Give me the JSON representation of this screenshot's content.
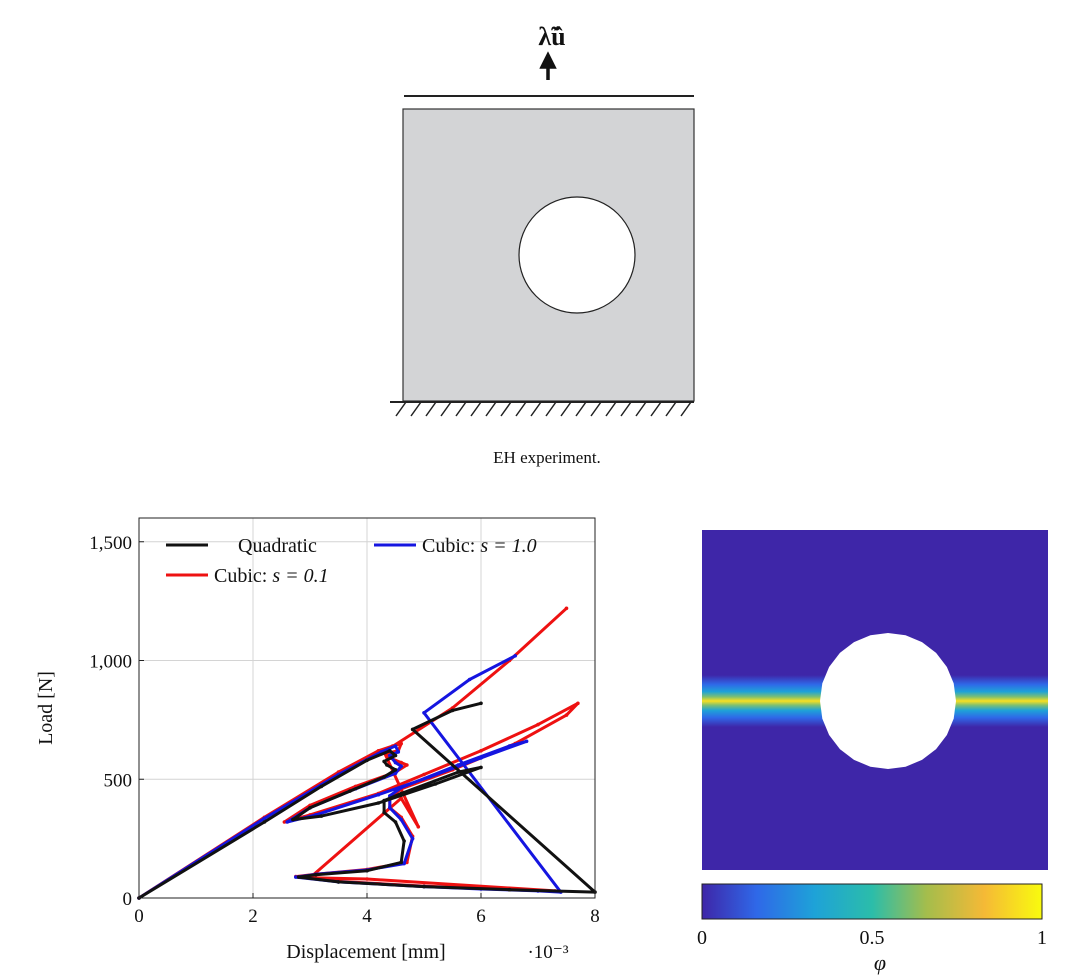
{
  "figure": {
    "load_label": "λ̃û",
    "caption": "EH experiment."
  },
  "chart_data": [
    {
      "type": "line",
      "title": "",
      "xlabel": "Displacement [mm]",
      "x_scale_note": "·10⁻³",
      "ylabel": "Load [N]",
      "xlim": [
        0,
        8
      ],
      "ylim": [
        0,
        1600
      ],
      "xticks": [
        0,
        2,
        4,
        6,
        8
      ],
      "xtick_labels": [
        "0",
        "2",
        "4",
        "6",
        "8"
      ],
      "yticks": [
        0,
        500,
        1000,
        1500
      ],
      "ytick_labels": [
        "0",
        "500",
        "1,000",
        "1,500"
      ],
      "grid": true,
      "legend_position": "top-left",
      "series": [
        {
          "name": "Cubic: s = 0.1",
          "legend_label": "Cubic:",
          "legend_math": "s = 0.1",
          "color": "#ee1111",
          "points": [
            [
              0,
              0
            ],
            [
              2.2,
              340
            ],
            [
              3.5,
              530
            ],
            [
              4.2,
              620
            ],
            [
              4.45,
              640
            ],
            [
              4.6,
              650
            ],
            [
              4.55,
              620
            ],
            [
              4.35,
              610
            ],
            [
              4.4,
              590
            ],
            [
              4.6,
              570
            ],
            [
              4.7,
              560
            ],
            [
              4.5,
              530
            ],
            [
              3.8,
              470
            ],
            [
              3.0,
              390
            ],
            [
              2.55,
              320
            ],
            [
              3.0,
              350
            ],
            [
              4.2,
              440
            ],
            [
              5.0,
              520
            ],
            [
              6.0,
              620
            ],
            [
              7.0,
              730
            ],
            [
              7.7,
              820
            ],
            [
              7.5,
              770
            ],
            [
              6.6,
              650
            ],
            [
              5.5,
              540
            ],
            [
              4.6,
              460
            ],
            [
              4.4,
              420
            ],
            [
              4.4,
              380
            ],
            [
              4.6,
              340
            ],
            [
              4.8,
              260
            ],
            [
              4.7,
              150
            ],
            [
              4.0,
              120
            ],
            [
              3.1,
              100
            ],
            [
              2.75,
              90
            ],
            [
              3.5,
              70
            ],
            [
              5.0,
              50
            ],
            [
              6.5,
              35
            ],
            [
              7.3,
              30
            ],
            [
              4.0,
              80
            ],
            [
              3.0,
              85
            ],
            [
              4.6,
              420
            ],
            [
              4.9,
              300
            ],
            [
              4.3,
              615
            ],
            [
              5.5,
              800
            ],
            [
              6.5,
              1000
            ],
            [
              7.5,
              1220
            ]
          ]
        },
        {
          "name": "Cubic: s = 1.0",
          "legend_label": "Cubic:",
          "legend_math": "s = 1.0",
          "color": "#1515e0",
          "points": [
            [
              0,
              0
            ],
            [
              2.2,
              335
            ],
            [
              3.5,
              520
            ],
            [
              4.25,
              615
            ],
            [
              4.5,
              640
            ],
            [
              4.55,
              615
            ],
            [
              4.4,
              600
            ],
            [
              4.5,
              570
            ],
            [
              4.6,
              555
            ],
            [
              4.5,
              525
            ],
            [
              3.8,
              460
            ],
            [
              3.0,
              380
            ],
            [
              2.6,
              320
            ],
            [
              3.1,
              350
            ],
            [
              4.2,
              435
            ],
            [
              5.1,
              510
            ],
            [
              6.0,
              590
            ],
            [
              6.8,
              660
            ],
            [
              6.5,
              640
            ],
            [
              5.6,
              560
            ],
            [
              4.6,
              465
            ],
            [
              4.4,
              430
            ],
            [
              4.4,
              380
            ],
            [
              4.6,
              330
            ],
            [
              4.8,
              250
            ],
            [
              4.65,
              145
            ],
            [
              4.0,
              118
            ],
            [
              3.1,
              100
            ],
            [
              2.75,
              88
            ],
            [
              3.5,
              68
            ],
            [
              5.0,
              48
            ],
            [
              6.0,
              38
            ],
            [
              7.0,
              30
            ],
            [
              7.4,
              25
            ],
            [
              5.0,
              780
            ],
            [
              5.8,
              920
            ],
            [
              6.6,
              1020
            ]
          ]
        },
        {
          "name": "Quadratic",
          "legend_label": "Quadratic",
          "color": "#111111",
          "points": [
            [
              0,
              0
            ],
            [
              2.2,
              320
            ],
            [
              3.2,
              470
            ],
            [
              4.0,
              580
            ],
            [
              4.4,
              620
            ],
            [
              4.5,
              600
            ],
            [
              4.3,
              575
            ],
            [
              4.35,
              560
            ],
            [
              4.5,
              540
            ],
            [
              4.3,
              510
            ],
            [
              3.7,
              450
            ],
            [
              3.0,
              380
            ],
            [
              2.7,
              330
            ],
            [
              3.2,
              345
            ],
            [
              4.2,
              400
            ],
            [
              5.2,
              480
            ],
            [
              6.0,
              550
            ],
            [
              5.6,
              530
            ],
            [
              4.6,
              440
            ],
            [
              4.3,
              410
            ],
            [
              4.3,
              360
            ],
            [
              4.5,
              320
            ],
            [
              4.65,
              240
            ],
            [
              4.6,
              150
            ],
            [
              4.0,
              115
            ],
            [
              3.1,
              98
            ],
            [
              2.8,
              88
            ],
            [
              3.5,
              68
            ],
            [
              5.0,
              48
            ],
            [
              6.5,
              35
            ],
            [
              8.0,
              25
            ],
            [
              4.8,
              710
            ],
            [
              5.5,
              790
            ],
            [
              6.0,
              820
            ]
          ]
        }
      ]
    },
    {
      "type": "heatmap",
      "colorbar_label": "φ",
      "colorbar_ticks": [
        "0",
        "0.5",
        "1"
      ],
      "colorbar_range": [
        0,
        1
      ],
      "colormap_stops": [
        "#3e26a8",
        "#2f68e8",
        "#1ea2d8",
        "#2bbdaa",
        "#a4bd4c",
        "#f5b936",
        "#f9fb0e"
      ],
      "crack": "horizontal band of φ≈1 through the centre on both sides of the hole"
    }
  ]
}
